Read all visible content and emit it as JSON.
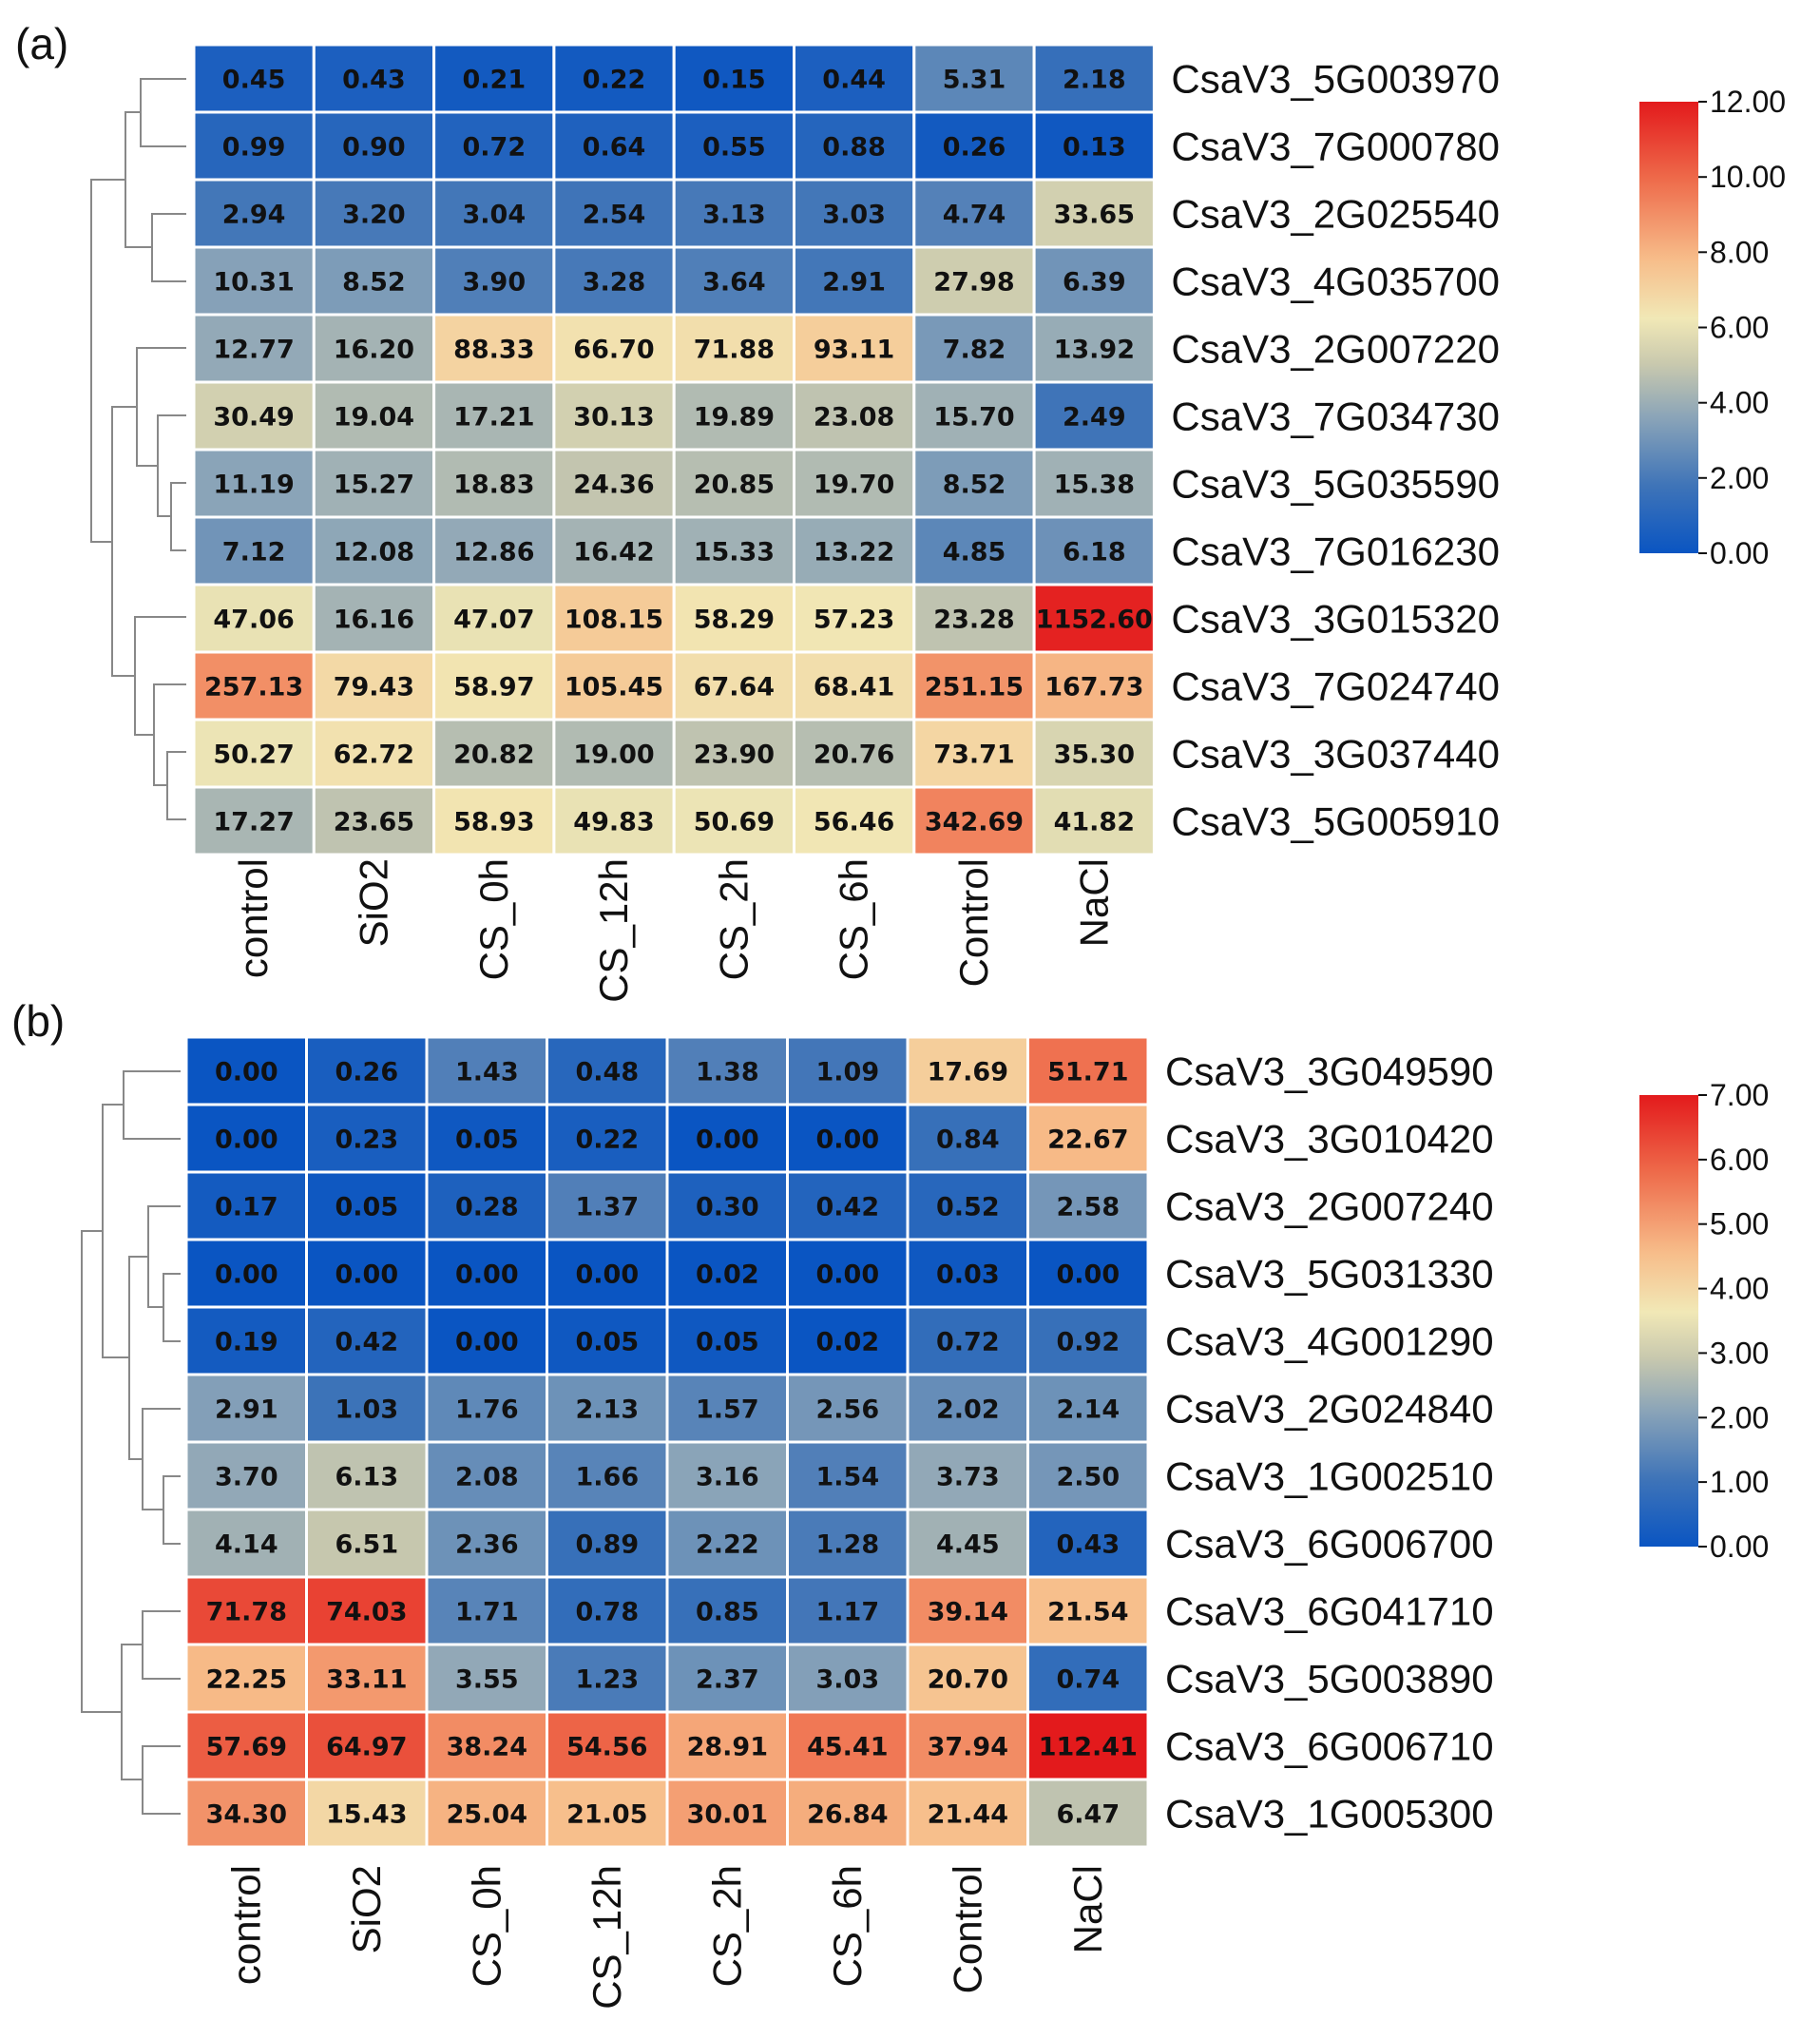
{
  "colors": {
    "scale": [
      "#0a55c2",
      "#3f74b8",
      "#8aa4b8",
      "#c9c9ae",
      "#f1e8b6",
      "#f7bd8a",
      "#ee6a4a",
      "#e31a1c"
    ],
    "grid_line": "#ffffff",
    "dendrogram": "#888888"
  },
  "chart_data": [
    {
      "type": "heatmap",
      "panel_label": "(a)",
      "columns": [
        "control",
        "SiO2",
        "CS_0h",
        "CS_12h",
        "CS_2h",
        "CS_6h",
        "Control",
        "NaCl"
      ],
      "rows": [
        "CsaV3_5G003970",
        "CsaV3_7G000780",
        "CsaV3_2G025540",
        "CsaV3_4G035700",
        "CsaV3_2G007220",
        "CsaV3_7G034730",
        "CsaV3_5G035590",
        "CsaV3_7G016230",
        "CsaV3_3G015320",
        "CsaV3_7G024740",
        "CsaV3_3G037440",
        "CsaV3_5G005910"
      ],
      "labels": [
        [
          "0.45",
          "0.43",
          "0.21",
          "0.22",
          "0.15",
          "0.44",
          "5.31",
          "2.18"
        ],
        [
          "0.99",
          "0.90",
          "0.72",
          "0.64",
          "0.55",
          "0.88",
          "0.26",
          "0.13"
        ],
        [
          "2.94",
          "3.20",
          "3.04",
          "2.54",
          "3.13",
          "3.03",
          "4.74",
          "33.65"
        ],
        [
          "10.31",
          "8.52",
          "3.90",
          "3.28",
          "3.64",
          "2.91",
          "27.98",
          "6.39"
        ],
        [
          "12.77",
          "16.20",
          "88.33",
          "66.70",
          "71.88",
          "93.11",
          "7.82",
          "13.92"
        ],
        [
          "30.49",
          "19.04",
          "17.21",
          "30.13",
          "19.89",
          "23.08",
          "15.70",
          "2.49"
        ],
        [
          "11.19",
          "15.27",
          "18.83",
          "24.36",
          "20.85",
          "19.70",
          "8.52",
          "15.38"
        ],
        [
          "7.12",
          "12.08",
          "12.86",
          "16.42",
          "15.33",
          "13.22",
          "4.85",
          "6.18"
        ],
        [
          "47.06",
          "16.16",
          "47.07",
          "108.15",
          "58.29",
          "57.23",
          "23.28",
          "1152.60"
        ],
        [
          "257.13",
          "79.43",
          "58.97",
          "105.45",
          "67.64",
          "68.41",
          "251.15",
          "167.73"
        ],
        [
          "50.27",
          "62.72",
          "20.82",
          "19.00",
          "23.90",
          "20.76",
          "73.71",
          "35.30"
        ],
        [
          "17.27",
          "23.65",
          "58.93",
          "49.83",
          "50.69",
          "56.46",
          "342.69",
          "41.82"
        ]
      ],
      "color_values": [
        [
          0.6,
          0.6,
          0.3,
          0.3,
          0.2,
          0.6,
          2.5,
          1.5
        ],
        [
          1.0,
          1.0,
          0.8,
          0.7,
          0.6,
          0.9,
          0.3,
          0.2
        ],
        [
          1.9,
          2.0,
          1.9,
          1.8,
          2.0,
          1.9,
          2.3,
          5.3
        ],
        [
          3.5,
          3.3,
          2.2,
          2.0,
          2.2,
          1.9,
          5.2,
          3.0
        ],
        [
          3.8,
          4.2,
          7.0,
          6.5,
          6.6,
          7.2,
          3.2,
          3.9
        ],
        [
          5.3,
          4.5,
          4.3,
          5.3,
          4.5,
          4.8,
          4.1,
          1.8
        ],
        [
          3.6,
          4.1,
          4.5,
          4.9,
          4.6,
          4.5,
          3.3,
          4.1
        ],
        [
          3.0,
          3.7,
          3.8,
          4.2,
          4.1,
          3.9,
          2.5,
          2.9
        ],
        [
          6.0,
          4.2,
          6.0,
          7.3,
          6.4,
          6.3,
          4.8,
          11.8
        ],
        [
          9.0,
          6.8,
          6.4,
          7.3,
          6.6,
          6.6,
          8.9,
          8.0
        ],
        [
          6.1,
          6.5,
          4.6,
          4.5,
          4.8,
          4.6,
          6.9,
          5.5
        ],
        [
          4.3,
          4.8,
          6.4,
          6.0,
          6.1,
          6.3,
          9.3,
          5.8
        ]
      ],
      "colorbar": {
        "min": 0,
        "max": 12,
        "ticks": [
          "0.00",
          "2.00",
          "4.00",
          "6.00",
          "8.00",
          "10.00",
          "12.00"
        ]
      }
    },
    {
      "type": "heatmap",
      "panel_label": "(b)",
      "columns": [
        "control",
        "SiO2",
        "CS_0h",
        "CS_12h",
        "CS_2h",
        "CS_6h",
        "Control",
        "NaCl"
      ],
      "rows": [
        "CsaV3_3G049590",
        "CsaV3_3G010420",
        "CsaV3_2G007240",
        "CsaV3_5G031330",
        "CsaV3_4G001290",
        "CsaV3_2G024840",
        "CsaV3_1G002510",
        "CsaV3_6G006700",
        "CsaV3_6G041710",
        "CsaV3_5G003890",
        "CsaV3_6G006710",
        "CsaV3_1G005300"
      ],
      "labels": [
        [
          "0.00",
          "0.26",
          "1.43",
          "0.48",
          "1.38",
          "1.09",
          "17.69",
          "51.71"
        ],
        [
          "0.00",
          "0.23",
          "0.05",
          "0.22",
          "0.00",
          "0.00",
          "0.84",
          "22.67"
        ],
        [
          "0.17",
          "0.05",
          "0.28",
          "1.37",
          "0.30",
          "0.42",
          "0.52",
          "2.58"
        ],
        [
          "0.00",
          "0.00",
          "0.00",
          "0.00",
          "0.02",
          "0.00",
          "0.03",
          "0.00"
        ],
        [
          "0.19",
          "0.42",
          "0.00",
          "0.05",
          "0.05",
          "0.02",
          "0.72",
          "0.92"
        ],
        [
          "2.91",
          "1.03",
          "1.76",
          "2.13",
          "1.57",
          "2.56",
          "2.02",
          "2.14"
        ],
        [
          "3.70",
          "6.13",
          "2.08",
          "1.66",
          "3.16",
          "1.54",
          "3.73",
          "2.50"
        ],
        [
          "4.14",
          "6.51",
          "2.36",
          "0.89",
          "2.22",
          "1.28",
          "4.45",
          "0.43"
        ],
        [
          "71.78",
          "74.03",
          "1.71",
          "0.78",
          "0.85",
          "1.17",
          "39.14",
          "21.54"
        ],
        [
          "22.25",
          "33.11",
          "3.55",
          "1.23",
          "2.37",
          "3.03",
          "20.70",
          "0.74"
        ],
        [
          "57.69",
          "64.97",
          "38.24",
          "54.56",
          "28.91",
          "45.41",
          "37.94",
          "112.41"
        ],
        [
          "34.30",
          "15.43",
          "25.04",
          "21.05",
          "30.01",
          "26.84",
          "21.44",
          "6.47"
        ]
      ],
      "color_values": [
        [
          0.0,
          0.3,
          1.3,
          0.6,
          1.3,
          1.1,
          4.2,
          5.7
        ],
        [
          0.0,
          0.3,
          0.1,
          0.3,
          0.0,
          0.0,
          0.9,
          4.6
        ],
        [
          0.2,
          0.1,
          0.4,
          1.3,
          0.4,
          0.5,
          0.6,
          1.8
        ],
        [
          0.0,
          0.0,
          0.0,
          0.0,
          0.0,
          0.0,
          0.1,
          0.0
        ],
        [
          0.2,
          0.5,
          0.0,
          0.1,
          0.1,
          0.0,
          0.8,
          0.9
        ],
        [
          2.0,
          1.0,
          1.5,
          1.7,
          1.4,
          1.8,
          1.6,
          1.7
        ],
        [
          2.2,
          2.8,
          1.6,
          1.4,
          2.1,
          1.3,
          2.2,
          1.8
        ],
        [
          2.4,
          2.9,
          1.7,
          0.9,
          1.7,
          1.2,
          2.4,
          0.5
        ],
        [
          6.3,
          6.4,
          1.4,
          0.8,
          0.9,
          1.1,
          5.3,
          4.5
        ],
        [
          4.6,
          5.1,
          2.2,
          1.2,
          1.7,
          2.0,
          4.4,
          0.8
        ],
        [
          6.0,
          6.2,
          5.3,
          5.9,
          4.9,
          5.6,
          5.3,
          7.0
        ],
        [
          5.2,
          4.0,
          4.7,
          4.5,
          5.0,
          4.8,
          4.5,
          2.8
        ]
      ],
      "colorbar": {
        "min": 0,
        "max": 7,
        "ticks": [
          "0.00",
          "1.00",
          "2.00",
          "3.00",
          "4.00",
          "5.00",
          "6.00",
          "7.00"
        ]
      }
    }
  ]
}
